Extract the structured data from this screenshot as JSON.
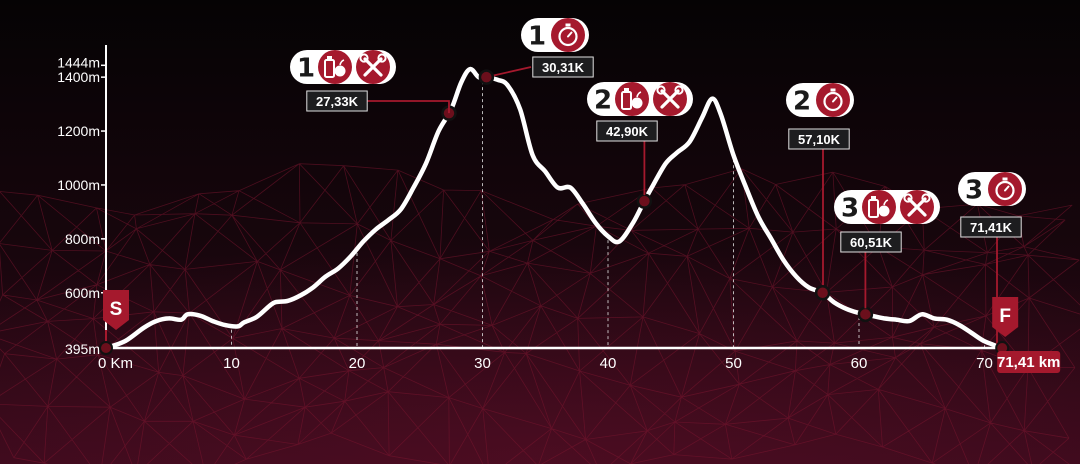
{
  "chart_data": {
    "type": "area",
    "x_unit": "Km",
    "y_unit": "m",
    "xlim": [
      0,
      71.41
    ],
    "ylim": [
      395,
      1444
    ],
    "x_ticks": [
      {
        "value": 0,
        "label": "0 Km"
      },
      {
        "value": 10,
        "label": "10"
      },
      {
        "value": 20,
        "label": "20"
      },
      {
        "value": 30,
        "label": "30"
      },
      {
        "value": 40,
        "label": "40"
      },
      {
        "value": 50,
        "label": "50"
      },
      {
        "value": 60,
        "label": "60"
      },
      {
        "value": 70,
        "label": "70"
      }
    ],
    "y_ticks": [
      {
        "value": 395,
        "label": "395m"
      },
      {
        "value": 600,
        "label": "600m"
      },
      {
        "value": 800,
        "label": "800m"
      },
      {
        "value": 1000,
        "label": "1000m"
      },
      {
        "value": 1200,
        "label": "1200m"
      },
      {
        "value": 1400,
        "label": "1400m"
      },
      {
        "value": 1444,
        "label": "1444m"
      }
    ],
    "profile": {
      "x": [
        0,
        1.5,
        3,
        4,
        5,
        6,
        6.5,
        7.5,
        8.5,
        9.5,
        10.5,
        11,
        12,
        13,
        13.5,
        14.5,
        15.5,
        16.5,
        17.5,
        18.5,
        19.5,
        20.5,
        21.5,
        22.5,
        23.5,
        24.5,
        25.5,
        26.5,
        27.5,
        28.3,
        29,
        29.7,
        30.31,
        31.2,
        32,
        33,
        34,
        35,
        36,
        37,
        38,
        39,
        40,
        40.9,
        42,
        42.9,
        43.6,
        44.6,
        45.5,
        46.5,
        47.5,
        48.3,
        49,
        50,
        51,
        52,
        53,
        54,
        55,
        56,
        57.1,
        58,
        59,
        60,
        61,
        62,
        63,
        64,
        65,
        66,
        67,
        68,
        69,
        70,
        71.41
      ],
      "y": [
        395,
        420,
        470,
        495,
        505,
        500,
        520,
        515,
        495,
        480,
        475,
        490,
        510,
        550,
        565,
        570,
        590,
        620,
        660,
        690,
        735,
        790,
        835,
        870,
        910,
        990,
        1080,
        1200,
        1280,
        1380,
        1430,
        1400,
        1400,
        1390,
        1370,
        1280,
        1110,
        1050,
        990,
        990,
        930,
        860,
        810,
        790,
        860,
        940,
        1000,
        1080,
        1120,
        1160,
        1250,
        1320,
        1260,
        1110,
        990,
        880,
        800,
        720,
        660,
        620,
        600,
        565,
        540,
        525,
        515,
        505,
        500,
        495,
        520,
        505,
        500,
        480,
        450,
        420,
        395
      ]
    },
    "aid_stations": [
      {
        "index": "1",
        "km": 27.33,
        "label": "27,33K",
        "services": [
          "food-drink",
          "tools"
        ]
      },
      {
        "index": "2",
        "km": 42.9,
        "label": "42,90K",
        "services": [
          "food-drink",
          "tools"
        ]
      },
      {
        "index": "3",
        "km": 60.51,
        "label": "60,51K",
        "services": [
          "food-drink",
          "tools"
        ]
      }
    ],
    "time_checkpoints": [
      {
        "index": "1",
        "km": 30.31,
        "label": "30,31K"
      },
      {
        "index": "2",
        "km": 57.1,
        "label": "57,10K"
      },
      {
        "index": "3",
        "km": 71.41,
        "label": "71,41K"
      }
    ],
    "start_label": "S",
    "finish_label": "F",
    "finish_distance_label": "71,41 km"
  },
  "colors": {
    "background": "#0b0508",
    "accent": "#a5192d",
    "line": "#ffffff",
    "marker_fill": "#6b0f1c",
    "label_bg": "#1d1d1f"
  }
}
